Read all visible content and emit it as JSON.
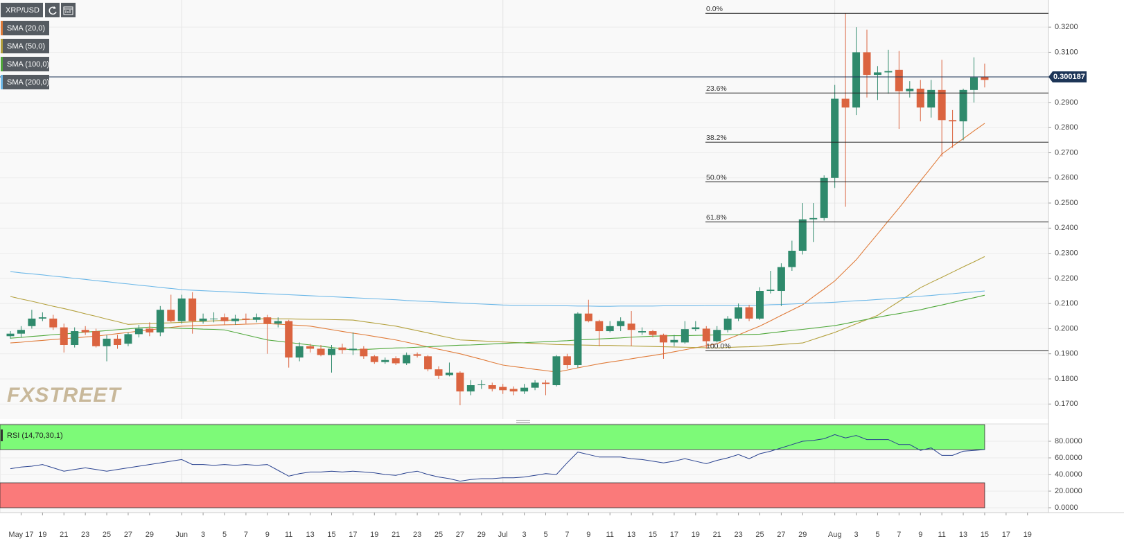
{
  "chart_data": {
    "type": "candlestick",
    "symbol": "XRP/USD",
    "watermark": "FXSTREET",
    "categories": [
      null,
      "May 17",
      null,
      "19",
      null,
      "21",
      null,
      "23",
      null,
      "25",
      null,
      "27",
      null,
      "29",
      null,
      null,
      "Jun",
      null,
      "3",
      null,
      "5",
      null,
      "7",
      null,
      "9",
      null,
      "11",
      null,
      "13",
      null,
      "15",
      null,
      "17",
      null,
      "19",
      null,
      "21",
      null,
      "23",
      null,
      "25",
      null,
      "27",
      null,
      "29",
      null,
      "Jul",
      null,
      "3",
      null,
      "5",
      null,
      "7",
      null,
      "9",
      null,
      "11",
      null,
      "13",
      null,
      "15",
      null,
      "17",
      null,
      "19",
      null,
      "21",
      null,
      "23",
      null,
      "25",
      null,
      "27",
      null,
      "29",
      null,
      null,
      "Aug",
      null,
      "3",
      null,
      "5",
      null,
      "7",
      null,
      "9",
      null,
      "11",
      null,
      "13",
      null,
      "15",
      null,
      "17",
      null,
      "19",
      null
    ],
    "open": [
      0.197,
      0.198,
      0.201,
      0.204,
      0.204,
      0.2005,
      0.1935,
      0.1995,
      0.199,
      0.193,
      0.196,
      0.194,
      0.1978,
      0.2,
      0.1985,
      0.2075,
      0.203,
      0.212,
      0.203,
      0.204,
      0.2045,
      0.203,
      0.204,
      0.2035,
      0.2045,
      0.202,
      0.203,
      0.1885,
      0.193,
      0.192,
      0.1895,
      0.1925,
      0.1915,
      0.192,
      0.189,
      0.1867,
      0.1882,
      0.1862,
      0.1898,
      0.189,
      0.1838,
      0.1815,
      0.1825,
      0.175,
      0.1775,
      0.1775,
      0.1768,
      0.176,
      0.175,
      0.1765,
      0.1785,
      0.1775,
      0.189,
      0.1855,
      0.206,
      0.203,
      0.199,
      0.201,
      0.202,
      0.1985,
      0.199,
      0.1975,
      0.1945,
      0.1945,
      0.1998,
      0.2,
      0.195,
      0.1995,
      0.204,
      0.2085,
      0.204,
      0.215,
      0.215,
      0.2245,
      0.231,
      0.2435,
      0.244,
      0.26,
      0.2915,
      0.288,
      0.31,
      0.301,
      0.302,
      0.303,
      0.2945,
      0.2955,
      0.288,
      0.295,
      0.283,
      0.2825,
      0.295,
      0.3002,
      null,
      null,
      null,
      null,
      null
    ],
    "high": [
      0.199,
      0.201,
      0.2075,
      0.2065,
      0.2055,
      0.202,
      0.2005,
      0.201,
      0.2,
      0.1975,
      0.1975,
      0.1985,
      0.2015,
      0.2025,
      0.209,
      0.2135,
      0.2135,
      0.2145,
      0.206,
      0.2065,
      0.206,
      0.2055,
      0.206,
      0.206,
      0.2055,
      0.2045,
      0.2035,
      0.1945,
      0.194,
      0.1935,
      0.1935,
      0.194,
      0.1985,
      0.193,
      0.1895,
      0.1885,
      0.189,
      0.1905,
      0.1905,
      0.1895,
      0.185,
      0.1865,
      0.183,
      0.1795,
      0.1795,
      0.1785,
      0.178,
      0.177,
      0.178,
      0.1795,
      0.1795,
      0.1895,
      0.19,
      0.2065,
      0.2115,
      0.2035,
      0.203,
      0.2045,
      0.207,
      0.2005,
      0.1995,
      0.198,
      0.1975,
      0.203,
      0.203,
      0.201,
      0.201,
      0.205,
      0.21,
      0.2095,
      0.2165,
      0.223,
      0.226,
      0.235,
      0.25,
      0.25,
      0.261,
      0.297,
      0.3255,
      0.32,
      0.319,
      0.3045,
      0.311,
      0.3105,
      0.2985,
      0.299,
      0.299,
      0.307,
      0.287,
      0.2955,
      0.308,
      0.3055,
      null,
      null,
      null,
      null,
      null
    ],
    "low": [
      0.196,
      0.1965,
      0.2,
      0.203,
      0.1995,
      0.1905,
      0.1925,
      0.1975,
      0.1925,
      0.187,
      0.192,
      0.193,
      0.1965,
      0.197,
      0.197,
      0.2025,
      0.202,
      0.198,
      0.202,
      0.2025,
      0.2015,
      0.2015,
      0.202,
      0.2025,
      0.19,
      0.2005,
      0.1845,
      0.187,
      0.1905,
      0.189,
      0.1825,
      0.19,
      0.1895,
      0.188,
      0.186,
      0.186,
      0.1855,
      0.1855,
      0.1885,
      0.183,
      0.18,
      0.181,
      0.1695,
      0.1735,
      0.176,
      0.175,
      0.174,
      0.1735,
      0.174,
      0.1755,
      0.1735,
      0.177,
      0.184,
      0.1845,
      0.2025,
      0.193,
      0.1985,
      0.199,
      0.193,
      0.1975,
      0.1965,
      0.188,
      0.193,
      0.194,
      0.199,
      0.192,
      0.1945,
      0.1985,
      0.203,
      0.203,
      0.2035,
      0.214,
      0.209,
      0.223,
      0.2295,
      0.2345,
      0.243,
      0.256,
      0.2485,
      0.285,
      0.292,
      0.291,
      0.2935,
      0.2795,
      0.292,
      0.2825,
      0.284,
      0.2685,
      0.272,
      0.275,
      0.29,
      0.296,
      null,
      null,
      null,
      null,
      null
    ],
    "close": [
      0.198,
      0.1995,
      0.204,
      0.2045,
      0.2005,
      0.1935,
      0.199,
      0.1985,
      0.193,
      0.196,
      0.1935,
      0.1978,
      0.2,
      0.1985,
      0.2075,
      0.203,
      0.212,
      0.203,
      0.204,
      0.204,
      0.203,
      0.204,
      0.2035,
      0.2045,
      0.202,
      0.203,
      0.1885,
      0.193,
      0.192,
      0.1895,
      0.192,
      0.1915,
      0.192,
      0.189,
      0.1867,
      0.1875,
      0.1862,
      0.1895,
      0.1892,
      0.1838,
      0.1812,
      0.1825,
      0.175,
      0.1775,
      0.1778,
      0.176,
      0.1755,
      0.175,
      0.1765,
      0.1785,
      0.178,
      0.189,
      0.1855,
      0.206,
      0.203,
      0.199,
      0.201,
      0.203,
      0.1995,
      0.199,
      0.1975,
      0.1945,
      0.1955,
      0.1998,
      0.2005,
      0.195,
      0.1995,
      0.204,
      0.2085,
      0.204,
      0.215,
      0.2155,
      0.2245,
      0.231,
      0.2435,
      0.244,
      0.26,
      0.2915,
      0.288,
      0.31,
      0.301,
      0.302,
      0.3025,
      0.2945,
      0.2955,
      0.288,
      0.295,
      0.283,
      0.2825,
      0.295,
      0.3,
      0.299,
      null,
      null,
      null,
      null,
      null
    ],
    "up_color": "#2f8a6c",
    "down_color": "#db6440",
    "series": [
      {
        "name": "SMA (20,0)",
        "color": "#e07b39",
        "values": [
          0.1943,
          0.1946,
          0.195,
          0.1953,
          0.1957,
          0.196,
          0.1963,
          0.1967,
          0.197,
          0.1975,
          0.198,
          0.1985,
          0.199,
          0.1995,
          0.2,
          0.2005,
          0.201,
          0.2011,
          0.2013,
          0.2014,
          0.2015,
          0.2016,
          0.2018,
          0.2019,
          0.202,
          0.2018,
          0.2015,
          0.2013,
          0.201,
          0.2003,
          0.1996,
          0.1989,
          0.1982,
          0.1976,
          0.1969,
          0.1962,
          0.1955,
          0.1946,
          0.1937,
          0.1927,
          0.1918,
          0.1909,
          0.19,
          0.1889,
          0.1878,
          0.1866,
          0.1855,
          0.1849,
          0.1844,
          0.1838,
          0.1833,
          0.1827,
          0.1835,
          0.1844,
          0.1852,
          0.186,
          0.1867,
          0.1873,
          0.188,
          0.1887,
          0.1893,
          0.19,
          0.1908,
          0.1916,
          0.1924,
          0.1932,
          0.194,
          0.1958,
          0.1975,
          0.1993,
          0.201,
          0.2031,
          0.2053,
          0.2074,
          0.2095,
          0.2127,
          0.2158,
          0.219,
          0.2232,
          0.2274,
          0.2326,
          0.2377,
          0.2429,
          0.248,
          0.2534,
          0.2588,
          0.2641,
          0.2695,
          0.2726,
          0.2756,
          0.2787,
          0.2817,
          null,
          null,
          null,
          null,
          null
        ]
      },
      {
        "name": "SMA (50,0)",
        "color": "#b3a03c",
        "values": [
          0.2128,
          0.2118,
          0.2109,
          0.2099,
          0.2089,
          0.208,
          0.207,
          0.2059,
          0.2049,
          0.2038,
          0.2028,
          0.2017,
          0.2019,
          0.202,
          0.2022,
          0.2023,
          0.2025,
          0.2027,
          0.2029,
          0.2031,
          0.2033,
          0.2034,
          0.2036,
          0.2038,
          0.204,
          0.2039,
          0.2039,
          0.2038,
          0.2037,
          0.2037,
          0.2036,
          0.2035,
          0.2034,
          0.2028,
          0.2022,
          0.2016,
          0.201,
          0.2001,
          0.1992,
          0.1983,
          0.1973,
          0.1964,
          0.1955,
          0.1953,
          0.1951,
          0.1949,
          0.1947,
          0.1945,
          0.1943,
          0.1941,
          0.1939,
          0.1937,
          0.1936,
          0.1935,
          0.1934,
          0.1933,
          0.1933,
          0.1932,
          0.1931,
          0.193,
          0.1929,
          0.1928,
          0.1927,
          0.1926,
          0.1925,
          0.1924,
          0.1923,
          0.1925,
          0.1927,
          0.1928,
          0.193,
          0.1933,
          0.1937,
          0.194,
          0.1943,
          0.1957,
          0.1971,
          0.1985,
          0.2002,
          0.2019,
          0.2036,
          0.2053,
          0.2081,
          0.2108,
          0.2136,
          0.2163,
          0.2184,
          0.2204,
          0.2225,
          0.2246,
          0.2266,
          0.2287,
          null,
          null,
          null,
          null,
          null
        ]
      },
      {
        "name": "SMA (100,0)",
        "color": "#4fa83a",
        "values": [
          0.1962,
          0.1965,
          0.1969,
          0.1972,
          0.1976,
          0.1979,
          0.1982,
          0.1986,
          0.1989,
          0.1992,
          0.1996,
          0.1999,
          0.2003,
          0.2006,
          0.2004,
          0.2003,
          0.2001,
          0.2,
          0.1998,
          0.1997,
          0.1995,
          0.1985,
          0.1975,
          0.1965,
          0.1955,
          0.195,
          0.1945,
          0.194,
          0.1935,
          0.193,
          0.1925,
          0.192,
          0.1915,
          0.1917,
          0.1919,
          0.1921,
          0.1923,
          0.1924,
          0.1926,
          0.1928,
          0.193,
          0.1932,
          0.1934,
          0.1935,
          0.1937,
          0.1939,
          0.1941,
          0.1943,
          0.1944,
          0.1946,
          0.1948,
          0.195,
          0.1952,
          0.1955,
          0.1957,
          0.1959,
          0.1961,
          0.1963,
          0.1966,
          0.1968,
          0.197,
          0.1971,
          0.1972,
          0.1972,
          0.1973,
          0.1974,
          0.1975,
          0.1976,
          0.1976,
          0.1977,
          0.1978,
          0.1983,
          0.1988,
          0.1993,
          0.1997,
          0.2002,
          0.2007,
          0.2012,
          0.202,
          0.2029,
          0.2037,
          0.2045,
          0.2053,
          0.206,
          0.2068,
          0.2075,
          0.2085,
          0.2094,
          0.2104,
          0.2114,
          0.2123,
          0.2133,
          null,
          null,
          null,
          null,
          null
        ]
      },
      {
        "name": "SMA (200,0)",
        "color": "#6db8e8",
        "values": [
          0.2227,
          0.2222,
          0.2218,
          0.2214,
          0.2209,
          0.2205,
          0.22,
          0.2196,
          0.2191,
          0.2187,
          0.2182,
          0.2178,
          0.2173,
          0.2169,
          0.2164,
          0.216,
          0.2155,
          0.2153,
          0.2151,
          0.2149,
          0.2147,
          0.2145,
          0.2143,
          0.2141,
          0.2139,
          0.2137,
          0.2135,
          0.2133,
          0.2131,
          0.2129,
          0.2127,
          0.2125,
          0.2123,
          0.2121,
          0.2119,
          0.2117,
          0.2115,
          0.2112,
          0.211,
          0.2108,
          0.2106,
          0.2104,
          0.2102,
          0.21,
          0.2098,
          0.2096,
          0.2094,
          0.2093,
          0.2093,
          0.2092,
          0.2092,
          0.2091,
          0.2091,
          0.209,
          0.209,
          0.2089,
          0.2089,
          0.209,
          0.209,
          0.209,
          0.209,
          0.2091,
          0.2091,
          0.2091,
          0.2091,
          0.2092,
          0.2092,
          0.2092,
          0.2092,
          0.2093,
          0.2093,
          0.2095,
          0.2096,
          0.2098,
          0.21,
          0.2102,
          0.2103,
          0.2105,
          0.2108,
          0.2111,
          0.2113,
          0.2116,
          0.2119,
          0.2122,
          0.2125,
          0.2129,
          0.2132,
          0.2136,
          0.2139,
          0.2143,
          0.2146,
          0.215,
          null,
          null,
          null,
          null,
          null
        ]
      }
    ],
    "fib_levels": [
      {
        "label": "0.0%",
        "value": 0.3255
      },
      {
        "label": "23.6%",
        "value": 0.2938
      },
      {
        "label": "38.2%",
        "value": 0.2742
      },
      {
        "label": "50.0%",
        "value": 0.2584
      },
      {
        "label": "61.8%",
        "value": 0.2425
      },
      {
        "label": "100.0%",
        "value": 0.1912
      }
    ],
    "current_price": 0.300187,
    "ylim": [
      0.164,
      0.3308
    ],
    "yticks": [
      {
        "value": 0.17,
        "label": "0.1700"
      },
      {
        "value": 0.18,
        "label": "0.1800"
      },
      {
        "value": 0.19,
        "label": "0.1900"
      },
      {
        "value": 0.2,
        "label": "0.2000"
      },
      {
        "value": 0.21,
        "label": "0.2100"
      },
      {
        "value": 0.22,
        "label": "0.2200"
      },
      {
        "value": 0.23,
        "label": "0.2300"
      },
      {
        "value": 0.24,
        "label": "0.2400"
      },
      {
        "value": 0.25,
        "label": "0.2500"
      },
      {
        "value": 0.26,
        "label": "0.2600"
      },
      {
        "value": 0.27,
        "label": "0.2700"
      },
      {
        "value": 0.28,
        "label": "0.2800"
      },
      {
        "value": 0.29,
        "label": "0.2900"
      },
      {
        "value": 0.3,
        "label": "0.3000"
      },
      {
        "value": 0.31,
        "label": "0.3100"
      },
      {
        "value": 0.32,
        "label": "0.3200"
      }
    ],
    "grid": true,
    "rsi": {
      "name": "RSI (14,70,30,1)",
      "color": "#27408f",
      "overbought": 70,
      "oversold": 30,
      "overbought_color": "#7dfa78",
      "oversold_color": "#fa7a7a",
      "values": [
        47,
        49,
        50,
        52,
        48,
        44,
        46,
        48,
        46,
        44,
        46,
        48,
        50,
        52,
        54,
        56,
        58,
        52,
        52,
        51,
        52,
        51,
        52,
        51,
        52,
        45,
        38,
        41,
        43,
        43,
        44,
        43,
        44,
        43,
        42,
        40,
        39,
        42,
        44,
        40,
        37,
        35,
        32,
        34,
        35,
        35,
        36,
        36,
        37,
        39,
        41,
        40,
        54,
        67,
        64,
        61,
        61,
        61,
        59,
        58,
        56,
        54,
        56,
        59,
        56,
        53,
        57,
        60,
        64,
        59,
        65,
        68,
        72,
        76,
        80,
        81,
        83,
        88,
        84,
        87,
        82,
        82,
        82,
        76,
        76,
        69,
        72,
        63,
        63,
        68,
        69,
        70,
        null,
        null,
        null,
        null,
        null
      ],
      "ylim": [
        0,
        100
      ],
      "yticks": [
        {
          "value": 0,
          "label": "0.0000"
        },
        {
          "value": 20,
          "label": "20.0000"
        },
        {
          "value": 40,
          "label": "40.0000"
        },
        {
          "value": 60,
          "label": "60.0000"
        },
        {
          "value": 80,
          "label": "80.0000"
        }
      ]
    }
  }
}
